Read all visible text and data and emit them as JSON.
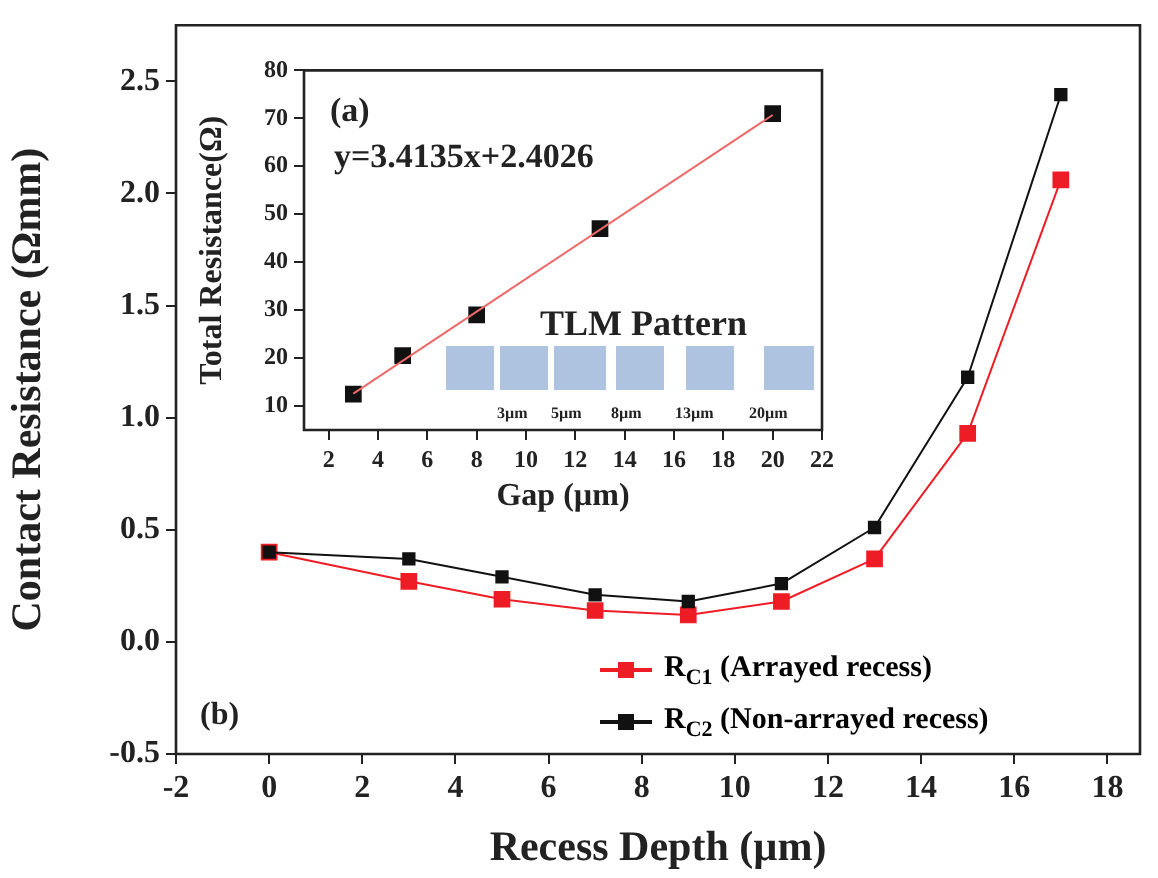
{
  "chart_data": [
    {
      "type": "line",
      "xlabel": "Recess Depth (µm)",
      "ylabel": "Contact Resistance (Ωmm)",
      "x": [
        0,
        3,
        5,
        7,
        9,
        11,
        13,
        15,
        17
      ],
      "series": [
        {
          "name": "R$_{C1}$ (Arrayed recess)",
          "color": "#ee1c25",
          "values": [
            0.4,
            0.27,
            0.19,
            0.14,
            0.12,
            0.18,
            0.37,
            0.93,
            2.06
          ]
        },
        {
          "name": "R$_{C2}$ (Non-arrayed recess)",
          "color": "#111111",
          "values": [
            0.4,
            0.37,
            0.29,
            0.21,
            0.18,
            0.26,
            0.51,
            1.18,
            2.44
          ]
        }
      ],
      "xlim": [
        -2,
        18.7
      ],
      "xticks": [
        -2,
        0,
        2,
        4,
        6,
        8,
        10,
        12,
        14,
        16,
        18
      ],
      "ylim": [
        -0.5,
        2.75
      ],
      "yticks": [
        -0.5,
        {
          "value": 0,
          "label": "0.0"
        },
        0.5,
        {
          "value": 1,
          "label": "1.0"
        },
        1.5,
        {
          "value": 2,
          "label": "2.0"
        },
        2.5
      ],
      "annotations": [
        "(b)"
      ],
      "legend": "bottom right",
      "marker": "square",
      "grid": false
    },
    {
      "type": "scatter",
      "xlabel": "Gap (µm)",
      "ylabel": "Total Resistance(Ω)",
      "series": [
        {
          "type": "scatter",
          "color": "#111111",
          "marker": "square",
          "x": [
            3,
            5,
            8,
            13,
            20
          ],
          "values": [
            12.5,
            20.5,
            29,
            47,
            71
          ]
        },
        {
          "type": "line",
          "color": "#ee6a6a",
          "marker": "none",
          "x": [
            3,
            20
          ],
          "values": [
            12.6,
            70.7
          ]
        }
      ],
      "xlim": [
        1,
        22
      ],
      "xticks": [
        2,
        4,
        6,
        8,
        10,
        12,
        14,
        16,
        18,
        20,
        22
      ],
      "ylim": [
        5,
        80
      ],
      "yticks": [
        10,
        20,
        30,
        40,
        50,
        60,
        70,
        80
      ],
      "annotations": [
        "(a)",
        "y=3.4135x+2.4026",
        "TLM Pattern",
        "3µm",
        "5µm",
        "8µm",
        "13µm",
        "20µm"
      ],
      "grid": false
    }
  ]
}
